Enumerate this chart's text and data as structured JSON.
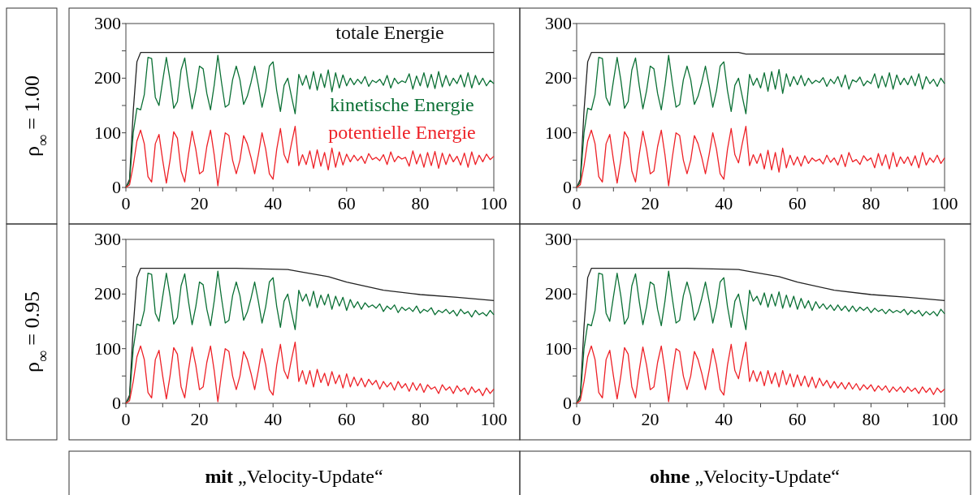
{
  "chart_data": [
    {
      "type": "line",
      "ylabel": "ρ$_{∞}$ = 1.00",
      "xlim": [
        0,
        100
      ],
      "ylim": [
        0,
        300
      ],
      "xticks": [
        0,
        {
          "value": 10,
          "label": null
        },
        20,
        {
          "value": 30,
          "label": null
        },
        40,
        {
          "value": 50,
          "label": null
        },
        60,
        {
          "value": 70,
          "label": null
        },
        80,
        {
          "value": 90,
          "label": null
        },
        100
      ],
      "yticks": [
        0,
        {
          "value": 50,
          "label": null
        },
        100,
        {
          "value": 150,
          "label": null
        },
        200,
        {
          "value": 250,
          "label": null
        },
        300
      ],
      "x": [
        0,
        1,
        2,
        3,
        4,
        5,
        6,
        7,
        8,
        9,
        10,
        11,
        12,
        13,
        14,
        15,
        16,
        17,
        18,
        19,
        20,
        21,
        22,
        23,
        24,
        25,
        26,
        27,
        28,
        29,
        30,
        31,
        32,
        33,
        34,
        35,
        36,
        37,
        38,
        39,
        40,
        41,
        42,
        43,
        44,
        45,
        46,
        47,
        48,
        49,
        50,
        51,
        52,
        53,
        54,
        55,
        56,
        57,
        58,
        59,
        60,
        61,
        62,
        63,
        64,
        65,
        66,
        67,
        68,
        69,
        70,
        71,
        72,
        73,
        74,
        75,
        76,
        77,
        78,
        79,
        80,
        81,
        82,
        83,
        84,
        85,
        86,
        87,
        88,
        89,
        90,
        91,
        92,
        93,
        94,
        95,
        96,
        97,
        98,
        99,
        100
      ],
      "series": [
        {
          "name": "totale Energie",
          "color": "#222222",
          "x": [
            0,
            1,
            2,
            3,
            4,
            100
          ],
          "values": [
            0,
            15,
            140,
            230,
            247,
            247
          ]
        },
        {
          "name": "kinetische Energie",
          "color": "#0b7035",
          "values": [
            0,
            10,
            100,
            145,
            142,
            170,
            238,
            236,
            165,
            150,
            195,
            238,
            197,
            145,
            157,
            215,
            237,
            187,
            144,
            177,
            222,
            217,
            172,
            142,
            187,
            242,
            192,
            147,
            152,
            197,
            222,
            197,
            152,
            167,
            192,
            222,
            187,
            147,
            177,
            222,
            230,
            177,
            139,
            187,
            200,
            167,
            135,
            207,
            187,
            205,
            180,
            212,
            178,
            208,
            183,
            215,
            175,
            210,
            182,
            206,
            186,
            200,
            188,
            198,
            190,
            203,
            185,
            196,
            192,
            198,
            187,
            205,
            182,
            200,
            190,
            195,
            192,
            208,
            180,
            204,
            186,
            210,
            183,
            207,
            181,
            212,
            184,
            205,
            186,
            200,
            190,
            206,
            184,
            210,
            182,
            205,
            188,
            200,
            186,
            196,
            190
          ]
        },
        {
          "name": "potentielle Energie",
          "color": "#ee2228",
          "values": [
            0,
            5,
            40,
            85,
            105,
            80,
            20,
            10,
            80,
            97,
            50,
            8,
            50,
            102,
            90,
            30,
            10,
            60,
            103,
            70,
            25,
            30,
            75,
            105,
            60,
            3,
            55,
            100,
            95,
            50,
            25,
            50,
            95,
            80,
            55,
            25,
            60,
            100,
            70,
            25,
            15,
            70,
            108,
            60,
            45,
            80,
            112,
            40,
            60,
            42,
            67,
            35,
            69,
            39,
            64,
            32,
            72,
            37,
            65,
            41,
            61,
            47,
            59,
            49,
            57,
            44,
            62,
            51,
            55,
            49,
            60,
            42,
            65,
            47,
            57,
            52,
            55,
            39,
            67,
            43,
            61,
            37,
            64,
            40,
            66,
            35,
            63,
            42,
            61,
            47,
            57,
            41,
            63,
            37,
            65,
            42,
            59,
            47,
            61,
            51,
            57
          ]
        }
      ]
    },
    {
      "type": "line",
      "xlim": [
        0,
        100
      ],
      "ylim": [
        0,
        300
      ],
      "xticks": [
        0,
        {
          "value": 10,
          "label": null
        },
        20,
        {
          "value": 30,
          "label": null
        },
        40,
        {
          "value": 50,
          "label": null
        },
        60,
        {
          "value": 70,
          "label": null
        },
        80,
        {
          "value": 90,
          "label": null
        },
        100
      ],
      "yticks": [
        0,
        {
          "value": 50,
          "label": null
        },
        100,
        {
          "value": 150,
          "label": null
        },
        200,
        {
          "value": 250,
          "label": null
        },
        300
      ],
      "x": [
        0,
        1,
        2,
        3,
        4,
        5,
        6,
        7,
        8,
        9,
        10,
        11,
        12,
        13,
        14,
        15,
        16,
        17,
        18,
        19,
        20,
        21,
        22,
        23,
        24,
        25,
        26,
        27,
        28,
        29,
        30,
        31,
        32,
        33,
        34,
        35,
        36,
        37,
        38,
        39,
        40,
        41,
        42,
        43,
        44,
        45,
        46,
        47,
        48,
        49,
        50,
        51,
        52,
        53,
        54,
        55,
        56,
        57,
        58,
        59,
        60,
        61,
        62,
        63,
        64,
        65,
        66,
        67,
        68,
        69,
        70,
        71,
        72,
        73,
        74,
        75,
        76,
        77,
        78,
        79,
        80,
        81,
        82,
        83,
        84,
        85,
        86,
        87,
        88,
        89,
        90,
        91,
        92,
        93,
        94,
        95,
        96,
        97,
        98,
        99,
        100
      ],
      "series": [
        {
          "color": "#222222",
          "x": [
            0,
            1,
            2,
            3,
            4,
            44,
            46,
            100
          ],
          "values": [
            0,
            15,
            140,
            230,
            247,
            247,
            244,
            244
          ]
        },
        {
          "color": "#0b7035",
          "values": [
            0,
            10,
            100,
            145,
            142,
            170,
            238,
            236,
            165,
            150,
            195,
            238,
            197,
            145,
            157,
            215,
            237,
            187,
            144,
            177,
            222,
            217,
            172,
            142,
            187,
            242,
            192,
            147,
            152,
            197,
            222,
            197,
            152,
            167,
            192,
            222,
            187,
            147,
            177,
            222,
            230,
            177,
            139,
            187,
            200,
            167,
            135,
            207,
            187,
            200,
            182,
            210,
            176,
            212,
            180,
            216,
            172,
            208,
            185,
            203,
            188,
            205,
            186,
            200,
            190,
            196,
            192,
            201,
            185,
            198,
            190,
            203,
            184,
            206,
            180,
            197,
            193,
            202,
            186,
            195,
            190,
            208,
            182,
            204,
            184,
            210,
            180,
            206,
            188,
            200,
            188,
            204,
            186,
            208,
            180,
            203,
            190,
            198,
            185,
            200,
            190
          ]
        },
        {
          "color": "#ee2228",
          "values": [
            0,
            5,
            40,
            85,
            105,
            80,
            20,
            10,
            80,
            97,
            50,
            8,
            50,
            102,
            90,
            30,
            10,
            60,
            103,
            70,
            25,
            30,
            75,
            105,
            60,
            3,
            55,
            100,
            95,
            50,
            25,
            50,
            95,
            80,
            55,
            25,
            60,
            100,
            70,
            25,
            15,
            70,
            108,
            60,
            45,
            80,
            112,
            40,
            60,
            44,
            62,
            34,
            68,
            32,
            64,
            28,
            72,
            36,
            59,
            41,
            56,
            39,
            58,
            44,
            54,
            48,
            52,
            43,
            59,
            46,
            54,
            41,
            60,
            38,
            64,
            47,
            51,
            42,
            58,
            49,
            54,
            36,
            62,
            40,
            60,
            34,
            64,
            38,
            56,
            44,
            56,
            40,
            58,
            36,
            64,
            41,
            54,
            46,
            59,
            44,
            54
          ]
        }
      ]
    },
    {
      "type": "line",
      "ylabel": "ρ$_{∞}$ = 0.95",
      "xlabel": "mit „Velocity-Update“",
      "xlim": [
        0,
        100
      ],
      "ylim": [
        0,
        300
      ],
      "xticks": [
        0,
        {
          "value": 10,
          "label": null
        },
        20,
        {
          "value": 30,
          "label": null
        },
        40,
        {
          "value": 50,
          "label": null
        },
        60,
        {
          "value": 70,
          "label": null
        },
        80,
        {
          "value": 90,
          "label": null
        },
        100
      ],
      "yticks": [
        0,
        {
          "value": 50,
          "label": null
        },
        100,
        {
          "value": 150,
          "label": null
        },
        200,
        {
          "value": 250,
          "label": null
        },
        300
      ],
      "x": [
        0,
        1,
        2,
        3,
        4,
        5,
        6,
        7,
        8,
        9,
        10,
        11,
        12,
        13,
        14,
        15,
        16,
        17,
        18,
        19,
        20,
        21,
        22,
        23,
        24,
        25,
        26,
        27,
        28,
        29,
        30,
        31,
        32,
        33,
        34,
        35,
        36,
        37,
        38,
        39,
        40,
        41,
        42,
        43,
        44,
        45,
        46,
        47,
        48,
        49,
        50,
        51,
        52,
        53,
        54,
        55,
        56,
        57,
        58,
        59,
        60,
        61,
        62,
        63,
        64,
        65,
        66,
        67,
        68,
        69,
        70,
        71,
        72,
        73,
        74,
        75,
        76,
        77,
        78,
        79,
        80,
        81,
        82,
        83,
        84,
        85,
        86,
        87,
        88,
        89,
        90,
        91,
        92,
        93,
        94,
        95,
        96,
        97,
        98,
        99,
        100
      ],
      "series": [
        {
          "color": "#222222",
          "x": [
            0,
            1,
            2,
            3,
            4,
            30,
            44,
            48,
            55,
            60,
            70,
            80,
            90,
            100
          ],
          "values": [
            0,
            15,
            140,
            230,
            247,
            247,
            245,
            240,
            232,
            222,
            207,
            199,
            194,
            188
          ]
        },
        {
          "color": "#0b7035",
          "values": [
            0,
            10,
            100,
            145,
            142,
            170,
            238,
            236,
            165,
            150,
            195,
            238,
            197,
            145,
            157,
            215,
            237,
            187,
            144,
            177,
            222,
            217,
            172,
            142,
            187,
            242,
            192,
            147,
            152,
            197,
            222,
            197,
            152,
            167,
            192,
            222,
            187,
            147,
            177,
            222,
            230,
            177,
            139,
            187,
            200,
            167,
            135,
            207,
            187,
            200,
            178,
            205,
            175,
            198,
            180,
            200,
            172,
            196,
            178,
            194,
            170,
            190,
            175,
            186,
            172,
            184,
            176,
            180,
            174,
            182,
            168,
            178,
            172,
            180,
            166,
            176,
            170,
            175,
            168,
            178,
            165,
            172,
            168,
            175,
            162,
            170,
            166,
            172,
            164,
            170,
            160,
            172,
            164,
            168,
            158,
            170,
            162,
            166,
            160,
            170,
            162
          ]
        },
        {
          "color": "#ee2228",
          "values": [
            0,
            5,
            40,
            85,
            105,
            80,
            20,
            10,
            80,
            97,
            50,
            8,
            50,
            102,
            90,
            30,
            10,
            60,
            103,
            70,
            25,
            30,
            75,
            105,
            60,
            3,
            55,
            100,
            95,
            50,
            25,
            50,
            95,
            80,
            55,
            25,
            60,
            100,
            70,
            25,
            15,
            70,
            108,
            60,
            45,
            80,
            112,
            40,
            60,
            35,
            60,
            30,
            62,
            38,
            55,
            32,
            58,
            36,
            52,
            28,
            54,
            30,
            48,
            32,
            46,
            30,
            44,
            34,
            42,
            26,
            40,
            30,
            38,
            24,
            40,
            28,
            36,
            22,
            38,
            24,
            36,
            20,
            34,
            26,
            30,
            18,
            34,
            24,
            30,
            18,
            32,
            22,
            28,
            16,
            30,
            20,
            26,
            14,
            28,
            18,
            26
          ]
        }
      ]
    },
    {
      "type": "line",
      "xlabel": "ohne „Velocity-Update“",
      "xlim": [
        0,
        100
      ],
      "ylim": [
        0,
        300
      ],
      "xticks": [
        0,
        {
          "value": 10,
          "label": null
        },
        20,
        {
          "value": 30,
          "label": null
        },
        40,
        {
          "value": 50,
          "label": null
        },
        60,
        {
          "value": 70,
          "label": null
        },
        80,
        {
          "value": 90,
          "label": null
        },
        100
      ],
      "yticks": [
        0,
        {
          "value": 50,
          "label": null
        },
        100,
        {
          "value": 150,
          "label": null
        },
        200,
        {
          "value": 250,
          "label": null
        },
        300
      ],
      "x": [
        0,
        1,
        2,
        3,
        4,
        5,
        6,
        7,
        8,
        9,
        10,
        11,
        12,
        13,
        14,
        15,
        16,
        17,
        18,
        19,
        20,
        21,
        22,
        23,
        24,
        25,
        26,
        27,
        28,
        29,
        30,
        31,
        32,
        33,
        34,
        35,
        36,
        37,
        38,
        39,
        40,
        41,
        42,
        43,
        44,
        45,
        46,
        47,
        48,
        49,
        50,
        51,
        52,
        53,
        54,
        55,
        56,
        57,
        58,
        59,
        60,
        61,
        62,
        63,
        64,
        65,
        66,
        67,
        68,
        69,
        70,
        71,
        72,
        73,
        74,
        75,
        76,
        77,
        78,
        79,
        80,
        81,
        82,
        83,
        84,
        85,
        86,
        87,
        88,
        89,
        90,
        91,
        92,
        93,
        94,
        95,
        96,
        97,
        98,
        99,
        100
      ],
      "series": [
        {
          "color": "#222222",
          "x": [
            0,
            1,
            2,
            3,
            4,
            30,
            44,
            48,
            55,
            60,
            70,
            80,
            90,
            100
          ],
          "values": [
            0,
            15,
            140,
            230,
            247,
            247,
            245,
            240,
            232,
            222,
            207,
            199,
            194,
            188
          ]
        },
        {
          "color": "#0b7035",
          "values": [
            0,
            10,
            100,
            145,
            142,
            170,
            238,
            236,
            165,
            150,
            195,
            238,
            197,
            145,
            157,
            215,
            237,
            187,
            144,
            177,
            222,
            217,
            172,
            142,
            187,
            242,
            192,
            147,
            152,
            197,
            222,
            197,
            152,
            167,
            192,
            222,
            187,
            147,
            177,
            222,
            230,
            177,
            139,
            187,
            200,
            167,
            135,
            207,
            187,
            196,
            180,
            202,
            176,
            200,
            178,
            204,
            174,
            198,
            176,
            196,
            172,
            192,
            174,
            188,
            170,
            186,
            174,
            182,
            172,
            180,
            170,
            180,
            170,
            178,
            168,
            178,
            168,
            176,
            170,
            176,
            166,
            174,
            168,
            172,
            164,
            172,
            166,
            170,
            166,
            172,
            162,
            170,
            164,
            170,
            160,
            168,
            162,
            168,
            160,
            172,
            164
          ]
        },
        {
          "color": "#ee2228",
          "values": [
            0,
            5,
            40,
            85,
            105,
            80,
            20,
            10,
            80,
            97,
            50,
            8,
            50,
            102,
            90,
            30,
            10,
            60,
            103,
            70,
            25,
            30,
            75,
            105,
            60,
            3,
            55,
            100,
            95,
            50,
            25,
            50,
            95,
            80,
            55,
            25,
            60,
            100,
            70,
            25,
            15,
            70,
            108,
            60,
            45,
            80,
            112,
            40,
            60,
            40,
            58,
            32,
            60,
            36,
            56,
            30,
            60,
            34,
            54,
            30,
            52,
            32,
            50,
            30,
            48,
            28,
            46,
            32,
            42,
            28,
            40,
            28,
            38,
            26,
            38,
            26,
            36,
            24,
            34,
            26,
            34,
            22,
            32,
            24,
            32,
            20,
            30,
            22,
            30,
            20,
            30,
            22,
            28,
            18,
            30,
            20,
            28,
            16,
            28,
            20,
            26
          ]
        }
      ]
    }
  ]
}
